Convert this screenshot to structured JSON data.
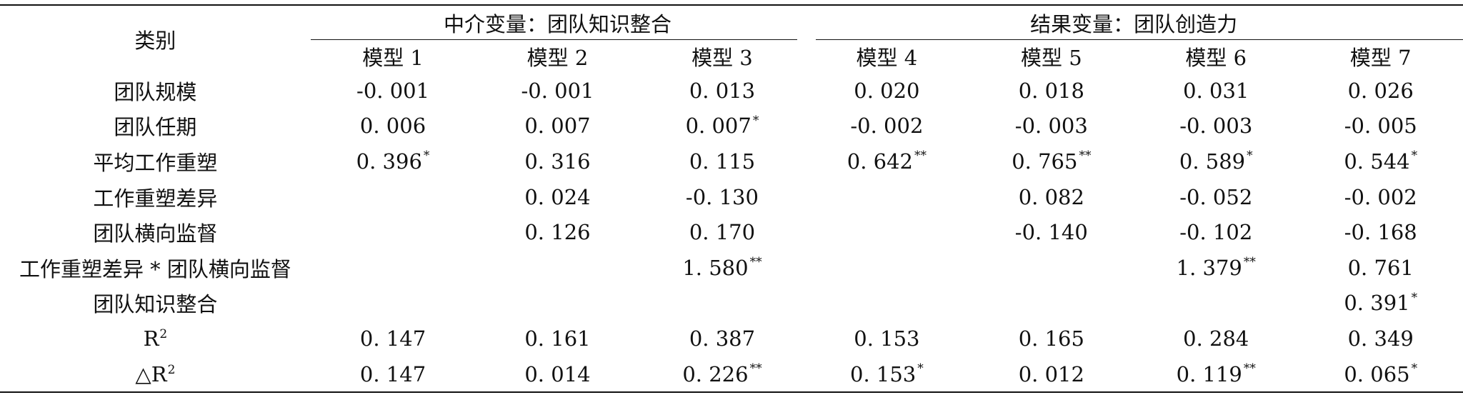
{
  "header": {
    "category_label": "类别",
    "group_mediator": "中介变量：团队知识整合",
    "group_outcome": "结果变量：团队创造力",
    "models": [
      "模型 1",
      "模型 2",
      "模型 3",
      "模型 4",
      "模型 5",
      "模型 6",
      "模型 7"
    ]
  },
  "rows": [
    {
      "label": "团队规模",
      "cells": [
        {
          "v": "-0. 001",
          "s": ""
        },
        {
          "v": "-0. 001",
          "s": ""
        },
        {
          "v": "0. 013",
          "s": ""
        },
        {
          "v": "0. 020",
          "s": ""
        },
        {
          "v": "0. 018",
          "s": ""
        },
        {
          "v": "0. 031",
          "s": ""
        },
        {
          "v": "0. 026",
          "s": ""
        }
      ]
    },
    {
      "label": "团队任期",
      "cells": [
        {
          "v": "0. 006",
          "s": ""
        },
        {
          "v": "0. 007",
          "s": ""
        },
        {
          "v": "0. 007",
          "s": "*"
        },
        {
          "v": "-0. 002",
          "s": ""
        },
        {
          "v": "-0. 003",
          "s": ""
        },
        {
          "v": "-0. 003",
          "s": ""
        },
        {
          "v": "-0. 005",
          "s": ""
        }
      ]
    },
    {
      "label": "平均工作重塑",
      "cells": [
        {
          "v": "0. 396",
          "s": "*"
        },
        {
          "v": "0. 316",
          "s": ""
        },
        {
          "v": "0. 115",
          "s": ""
        },
        {
          "v": "0. 642",
          "s": "**"
        },
        {
          "v": "0. 765",
          "s": "**"
        },
        {
          "v": "0. 589",
          "s": "*"
        },
        {
          "v": "0. 544",
          "s": "*"
        }
      ]
    },
    {
      "label": "工作重塑差异",
      "cells": [
        {
          "v": "",
          "s": ""
        },
        {
          "v": "0. 024",
          "s": ""
        },
        {
          "v": "-0. 130",
          "s": ""
        },
        {
          "v": "",
          "s": ""
        },
        {
          "v": "0. 082",
          "s": ""
        },
        {
          "v": "-0. 052",
          "s": ""
        },
        {
          "v": "-0. 002",
          "s": ""
        }
      ]
    },
    {
      "label": "团队横向监督",
      "cells": [
        {
          "v": "",
          "s": ""
        },
        {
          "v": "0. 126",
          "s": ""
        },
        {
          "v": "0. 170",
          "s": ""
        },
        {
          "v": "",
          "s": ""
        },
        {
          "v": "-0. 140",
          "s": ""
        },
        {
          "v": "-0. 102",
          "s": ""
        },
        {
          "v": "-0. 168",
          "s": ""
        }
      ]
    },
    {
      "label": "工作重塑差异 * 团队横向监督",
      "cells": [
        {
          "v": "",
          "s": ""
        },
        {
          "v": "",
          "s": ""
        },
        {
          "v": "1. 580",
          "s": "**"
        },
        {
          "v": "",
          "s": ""
        },
        {
          "v": "",
          "s": ""
        },
        {
          "v": "1. 379",
          "s": "**"
        },
        {
          "v": "0. 761",
          "s": ""
        }
      ]
    },
    {
      "label": "团队知识整合",
      "cells": [
        {
          "v": "",
          "s": ""
        },
        {
          "v": "",
          "s": ""
        },
        {
          "v": "",
          "s": ""
        },
        {
          "v": "",
          "s": ""
        },
        {
          "v": "",
          "s": ""
        },
        {
          "v": "",
          "s": ""
        },
        {
          "v": "0. 391",
          "s": "*"
        }
      ]
    },
    {
      "label": "R",
      "label_sup": "2",
      "cells": [
        {
          "v": "0. 147",
          "s": ""
        },
        {
          "v": "0. 161",
          "s": ""
        },
        {
          "v": "0. 387",
          "s": ""
        },
        {
          "v": "0. 153",
          "s": ""
        },
        {
          "v": "0. 165",
          "s": ""
        },
        {
          "v": "0. 284",
          "s": ""
        },
        {
          "v": "0. 349",
          "s": ""
        }
      ]
    },
    {
      "label": "△R",
      "label_sup": "2",
      "cells": [
        {
          "v": "0. 147",
          "s": ""
        },
        {
          "v": "0. 014",
          "s": ""
        },
        {
          "v": "0. 226",
          "s": "**"
        },
        {
          "v": "0. 153",
          "s": "*"
        },
        {
          "v": "0. 012",
          "s": ""
        },
        {
          "v": "0. 119",
          "s": "**"
        },
        {
          "v": "0. 065",
          "s": "*"
        }
      ]
    }
  ]
}
